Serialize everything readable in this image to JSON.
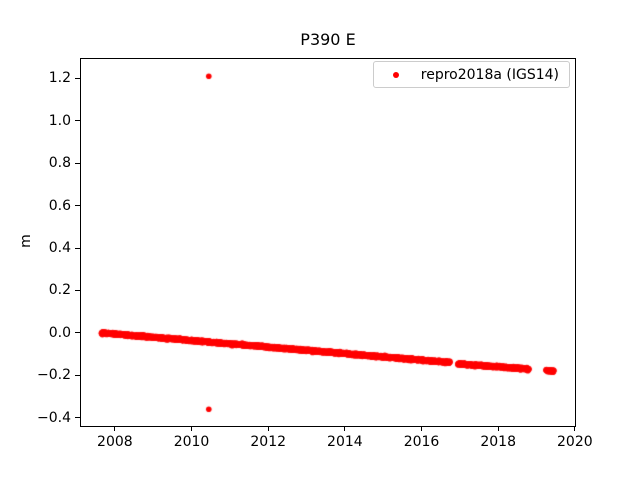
{
  "figure": {
    "background": "#ffffff",
    "text_color": "#000000",
    "legend_border_color": "#cccccc"
  },
  "chart_data": {
    "type": "scatter",
    "title": "P390 E",
    "xlabel": "",
    "ylabel": "m",
    "xlim": [
      2007.09,
      2020.03
    ],
    "ylim": [
      -0.444,
      1.296
    ],
    "grid": false,
    "xticks": [
      {
        "value": 2008,
        "label": "2008"
      },
      {
        "value": 2010,
        "label": "2010"
      },
      {
        "value": 2012,
        "label": "2012"
      },
      {
        "value": 2014,
        "label": "2014"
      },
      {
        "value": 2016,
        "label": "2016"
      },
      {
        "value": 2018,
        "label": "2018"
      },
      {
        "value": 2020,
        "label": "2020"
      }
    ],
    "yticks": [
      {
        "value": -0.4,
        "label": "−0.4"
      },
      {
        "value": -0.2,
        "label": "−0.2"
      },
      {
        "value": 0.0,
        "label": "0.0"
      },
      {
        "value": 0.2,
        "label": "0.2"
      },
      {
        "value": 0.4,
        "label": "0.4"
      },
      {
        "value": 0.6,
        "label": "0.6"
      },
      {
        "value": 0.8,
        "label": "0.8"
      },
      {
        "value": 1.0,
        "label": "1.0"
      },
      {
        "value": 1.2,
        "label": "1.2"
      }
    ],
    "legend": {
      "label": "repro2018a (IGS14)",
      "position": "upper right",
      "marker": "dot",
      "marker_color": "#ff0000"
    },
    "series": [
      {
        "name": "repro2018a (IGS14)",
        "color": "#ff0000",
        "marker": "point",
        "marker_radius_px": 2.8,
        "samples_per_year": 365,
        "noise_m": 0.0025,
        "trend_m_per_yr": -0.0153,
        "segments": [
          {
            "x_start": 2007.65,
            "y_start": 0.0,
            "x_end": 2016.74,
            "y_end": -0.14
          },
          {
            "x_start": 2016.95,
            "y_start": -0.146,
            "x_end": 2018.8,
            "y_end": -0.171
          },
          {
            "x_start": 2019.25,
            "y_start": -0.177,
            "x_end": 2019.45,
            "y_end": -0.18
          }
        ],
        "outliers": [
          {
            "x": 2010.45,
            "y": 1.21
          },
          {
            "x": 2010.45,
            "y": -0.36
          }
        ]
      }
    ]
  }
}
